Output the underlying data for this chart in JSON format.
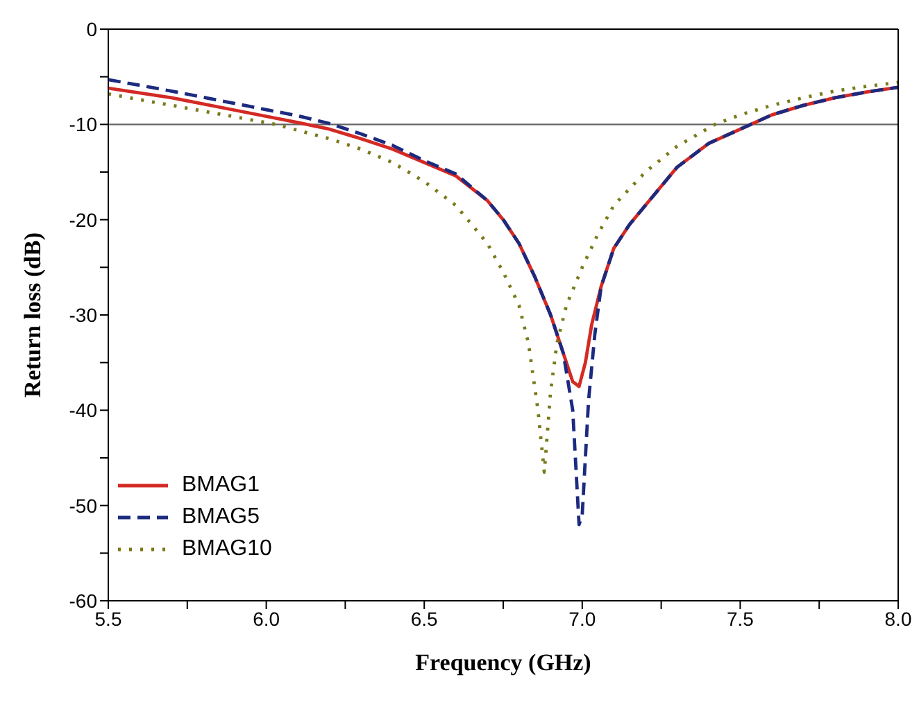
{
  "chart_data": {
    "type": "line",
    "xlabel": "Frequency (GHz)",
    "ylabel": "Return loss (dB)",
    "xlim": [
      5.5,
      8.0
    ],
    "ylim": [
      -60,
      0
    ],
    "xticks": [
      {
        "value": 5.5,
        "label": "5.5"
      },
      {
        "value": 5.75,
        "label": null
      },
      {
        "value": 6,
        "label": "6.0"
      },
      {
        "value": 6.25,
        "label": null
      },
      {
        "value": 6.5,
        "label": "6.5"
      },
      {
        "value": 6.75,
        "label": null
      },
      {
        "value": 7,
        "label": "7.0"
      },
      {
        "value": 7.25,
        "label": null
      },
      {
        "value": 7.5,
        "label": "7.5"
      },
      {
        "value": 7.75,
        "label": null
      },
      {
        "value": 8,
        "label": "8.0"
      }
    ],
    "yticks": [
      -60,
      {
        "value": -55,
        "label": null
      },
      -50,
      {
        "value": -45,
        "label": null
      },
      -40,
      {
        "value": -35,
        "label": null
      },
      -30,
      {
        "value": -25,
        "label": null
      },
      -20,
      {
        "value": -15,
        "label": null
      },
      -10,
      {
        "value": -5,
        "label": null
      },
      0
    ],
    "grid": false,
    "legend": "left",
    "marker": "none",
    "ref_lines": [
      {
        "axis": "y",
        "value": -10,
        "color": "#666666"
      }
    ],
    "series": [
      {
        "name": "BMAG1",
        "color": "#d42a24",
        "line_style": "solid",
        "x": [
          5.5,
          5.7,
          5.9,
          6.1,
          6.2,
          6.3,
          6.4,
          6.5,
          6.6,
          6.7,
          6.75,
          6.8,
          6.85,
          6.9,
          6.94,
          6.97,
          6.99,
          7.01,
          7.03,
          7.06,
          7.1,
          7.15,
          7.2,
          7.3,
          7.4,
          7.5,
          7.6,
          7.7,
          7.8,
          7.9,
          8.0
        ],
        "values": [
          -6.2,
          -7.2,
          -8.5,
          -9.8,
          -10.5,
          -11.5,
          -12.6,
          -14,
          -15.4,
          -18,
          -20,
          -22.5,
          -26,
          -30,
          -34,
          -37,
          -37.5,
          -35,
          -31,
          -27,
          -23,
          -20.5,
          -18.5,
          -14.5,
          -12,
          -10.5,
          -9,
          -8,
          -7.2,
          -6.6,
          -6.1
        ]
      },
      {
        "name": "BMAG5",
        "color": "#1c2a80",
        "line_style": "dashed",
        "x": [
          5.5,
          5.7,
          5.9,
          6.1,
          6.2,
          6.3,
          6.4,
          6.5,
          6.6,
          6.7,
          6.75,
          6.8,
          6.85,
          6.9,
          6.94,
          6.97,
          6.98,
          6.99,
          7.0,
          7.02,
          7.04,
          7.06,
          7.1,
          7.15,
          7.2,
          7.3,
          7.4,
          7.5,
          7.6,
          7.7,
          7.8,
          7.9,
          8.0
        ],
        "values": [
          -5.3,
          -6.5,
          -7.8,
          -9.1,
          -9.9,
          -11,
          -12.2,
          -13.8,
          -15.2,
          -18,
          -20,
          -22.5,
          -26,
          -30,
          -34,
          -40,
          -46,
          -52,
          -51,
          -39,
          -32,
          -27,
          -23,
          -20.5,
          -18.5,
          -14.5,
          -12,
          -10.5,
          -9,
          -8,
          -7.2,
          -6.6,
          -6.1
        ]
      },
      {
        "name": "BMAG10",
        "color": "#7a7a1a",
        "line_style": "dotted",
        "x": [
          5.5,
          5.7,
          5.9,
          6.03,
          6.2,
          6.3,
          6.4,
          6.5,
          6.6,
          6.7,
          6.75,
          6.8,
          6.83,
          6.86,
          6.88,
          6.9,
          6.92,
          6.95,
          7.0,
          7.05,
          7.1,
          7.2,
          7.3,
          7.42,
          7.5,
          7.6,
          7.7,
          7.8,
          7.9,
          8.0
        ],
        "values": [
          -6.8,
          -8,
          -9.2,
          -10,
          -11.5,
          -12.6,
          -14,
          -16,
          -18.5,
          -22.5,
          -25.5,
          -29,
          -33,
          -40,
          -46.5,
          -38,
          -33,
          -29,
          -25,
          -21.5,
          -18.5,
          -15,
          -12.3,
          -10,
          -9,
          -8,
          -7.2,
          -6.5,
          -6,
          -5.6
        ]
      }
    ]
  }
}
